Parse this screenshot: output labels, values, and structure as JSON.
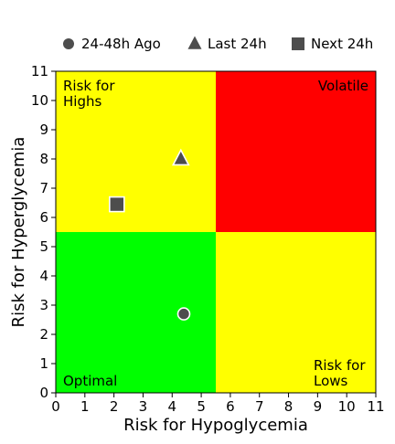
{
  "chart_data": {
    "type": "scatter",
    "xlabel": "Risk for Hypoglycemia",
    "ylabel": "Risk for Hyperglycemia",
    "xlim": [
      0,
      11
    ],
    "ylim": [
      0,
      11
    ],
    "xticks": [
      0,
      1,
      2,
      3,
      4,
      5,
      6,
      7,
      8,
      9,
      10,
      11
    ],
    "yticks": [
      0,
      1,
      2,
      3,
      4,
      5,
      6,
      7,
      8,
      9,
      10,
      11
    ],
    "grid": false,
    "legend_position": "top-center",
    "threshold": 5.5,
    "zones": [
      {
        "id": "optimal",
        "lines": [
          "Optimal"
        ],
        "x": [
          0,
          5.5
        ],
        "y": [
          0,
          5.5
        ],
        "color": "#00ff00",
        "anchor": "bottom-left"
      },
      {
        "id": "highs",
        "lines": [
          "Risk for",
          "Highs"
        ],
        "x": [
          0,
          5.5
        ],
        "y": [
          5.5,
          11
        ],
        "color": "#ffff00",
        "anchor": "top-left"
      },
      {
        "id": "lows",
        "lines": [
          "Risk for",
          "Lows"
        ],
        "x": [
          5.5,
          11
        ],
        "y": [
          0,
          5.5
        ],
        "color": "#ffff00",
        "anchor": "bottom-left-inset"
      },
      {
        "id": "volatile",
        "lines": [
          "Volatile"
        ],
        "x": [
          5.5,
          11
        ],
        "y": [
          5.5,
          11
        ],
        "color": "#ff0000",
        "anchor": "top-right"
      }
    ],
    "series": [
      {
        "name": "24-48h Ago",
        "marker": "circle",
        "color": "#4d4d4d",
        "x": 4.4,
        "y": 2.7
      },
      {
        "name": "Last 24h",
        "marker": "triangle",
        "color": "#4d4d4d",
        "x": 4.3,
        "y": 8.0
      },
      {
        "name": "Next 24h",
        "marker": "square",
        "color": "#4d4d4d",
        "x": 2.1,
        "y": 6.45
      }
    ]
  }
}
